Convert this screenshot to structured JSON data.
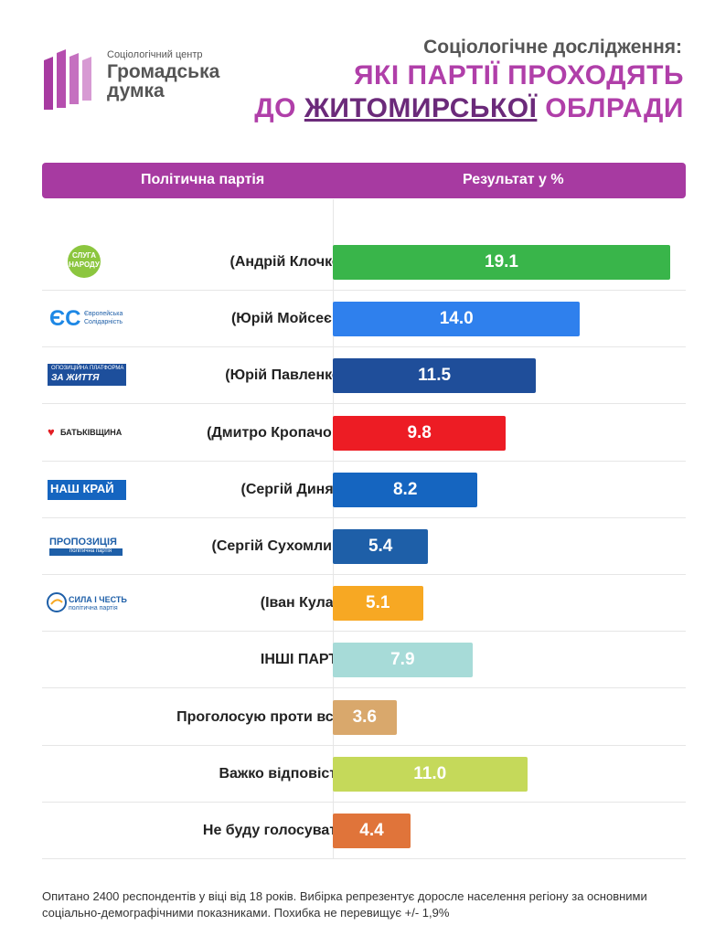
{
  "logo": {
    "small": "Соціологічний центр",
    "line1": "Громадська",
    "line2": "думка"
  },
  "title": {
    "top": "Соціологічне дослідження:",
    "line1": "ЯКІ ПАРТІЇ ПРОХОДЯТЬ",
    "line2_pre": "ДО ",
    "line2_em": "ЖИТОМИРСЬКОЇ",
    "line2_post": " ОБЛРАДИ"
  },
  "header": {
    "col1": "Політична партія",
    "col2": "Результат у %"
  },
  "party_logos": [
    {
      "text1": "СЛУГА",
      "text2": "НАРОДУ"
    },
    {
      "text1": "ЄС",
      "text2": "Європейська",
      "text3": "Солідарність"
    },
    {
      "text1": "ОПОЗИЦІЙНА ПЛАТФОРМА",
      "text2": "ЗА ЖИТТЯ"
    },
    {
      "text1": "БАТЬКІВЩИНА"
    },
    {
      "text1": "НАШ КРАЙ"
    },
    {
      "text1": "ПРОПОЗИЦІЯ",
      "text2": "політична партія"
    },
    {
      "text1": "СИЛА І ЧЕСТЬ",
      "text2": "політична партія"
    }
  ],
  "chart_data": {
    "type": "bar",
    "orientation": "horizontal",
    "categories": [
      "(Андрій Клочко)",
      "(Юрій Мойсеєв)",
      "(Юрій Павленко)",
      "(Дмитро Кропачов)",
      "(Сергій Диняк)",
      "(Сергій Сухомлин)",
      "(Іван Кулак)",
      "ІНШІ ПАРТІЇ",
      "Проголосую проти всіх",
      "Важко відповісти",
      "Не буду голосувати"
    ],
    "values": [
      19.1,
      14.0,
      11.5,
      9.8,
      8.2,
      5.4,
      5.1,
      7.9,
      3.6,
      11.0,
      4.4
    ],
    "value_labels": [
      "19.1",
      "14.0",
      "11.5",
      "9.8",
      "8.2",
      "5.4",
      "5.1",
      "7.9",
      "3.6",
      "11.0",
      "4.4"
    ],
    "colors": [
      "#39b54a",
      "#2f80ed",
      "#1f4e9a",
      "#ed1c24",
      "#1565c0",
      "#1e5fa8",
      "#f7a823",
      "#a7dbd8",
      "#d9a86c",
      "#c5d95a",
      "#e0743a"
    ],
    "xlim": [
      0,
      19.1
    ]
  },
  "footnote": "Опитано 2400 респондентів у віці від 18 років. Вибірка репрезентує доросле населення регіону за основними соціально-демографічними показниками. Похибка не перевищує +/- 1,9%"
}
